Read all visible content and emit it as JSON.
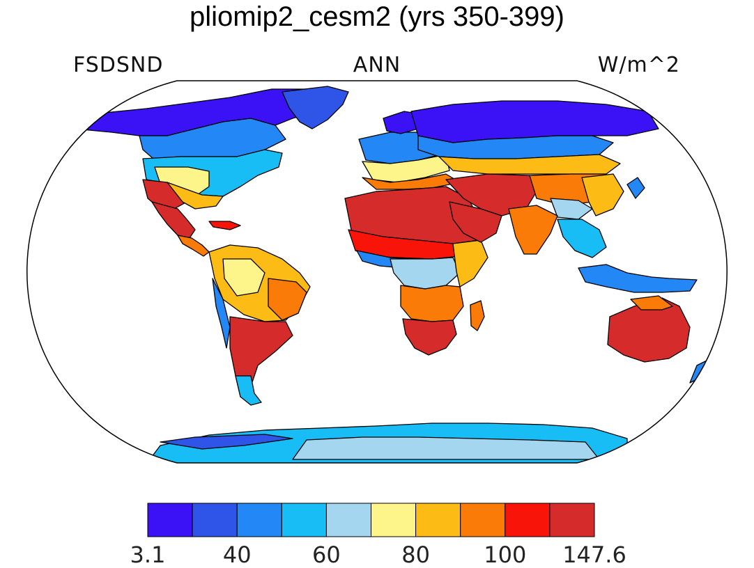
{
  "title": "pliomip2_cesm2 (yrs 350-399)",
  "subtitle_left": "FSDSND",
  "subtitle_center": "ANN",
  "subtitle_right": "W/m^2",
  "colorbar": {
    "colors": [
      "#3a12f5",
      "#2e55e8",
      "#2387f5",
      "#19bdf5",
      "#a4d6f0",
      "#fdf48a",
      "#fdbb16",
      "#fb7b08",
      "#f81408",
      "#d62b2b"
    ],
    "labels": [
      "3.1",
      "40",
      "60",
      "80",
      "100",
      "147.6"
    ]
  }
}
